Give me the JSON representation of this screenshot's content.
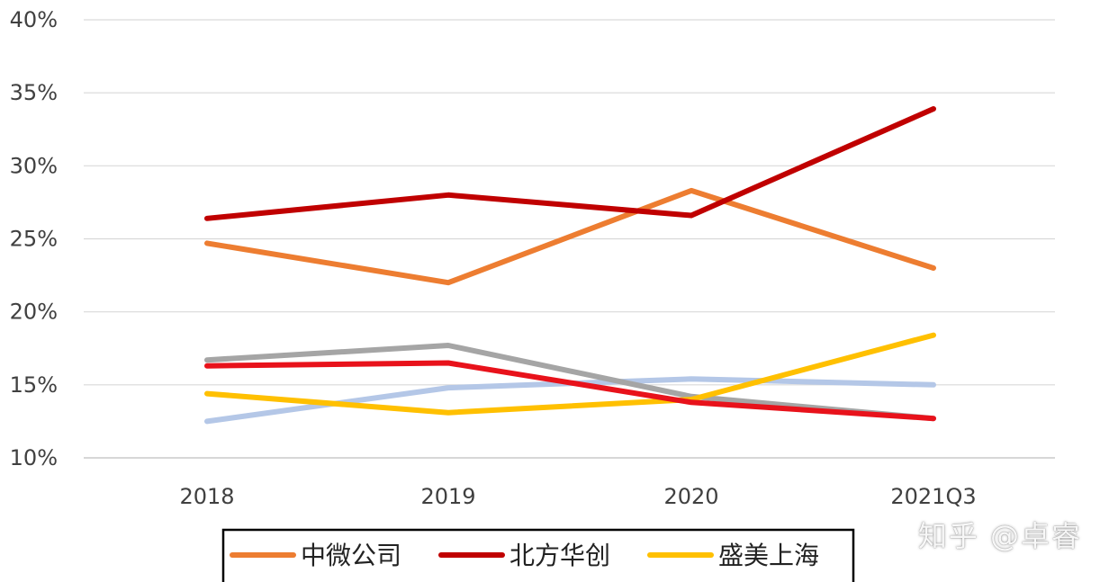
{
  "chart_data": {
    "type": "line",
    "categories": [
      "2018",
      "2019",
      "2020",
      "2021Q3"
    ],
    "y_ticks": [
      "10%",
      "15%",
      "20%",
      "25%",
      "30%",
      "35%",
      "40%"
    ],
    "ylim": [
      10,
      40
    ],
    "grid": true,
    "legend_position": "bottom",
    "series": [
      {
        "name": "中微公司",
        "color": "#ED7D31",
        "values": [
          24.7,
          22.0,
          28.3,
          23.0
        ],
        "legend": true
      },
      {
        "name": "北方华创",
        "color": "#C00000",
        "values": [
          26.4,
          28.0,
          26.6,
          33.9
        ],
        "legend": true
      },
      {
        "name": "盛美上海",
        "color": "#FFC000",
        "values": [
          14.4,
          13.1,
          14.0,
          18.4
        ],
        "legend": true
      },
      {
        "name": "",
        "color": "#A5A5A5",
        "values": [
          16.7,
          17.7,
          14.2,
          12.7
        ],
        "legend": false
      },
      {
        "name": "",
        "color": "#B4C7E7",
        "values": [
          12.5,
          14.8,
          15.4,
          15.0
        ],
        "legend": false
      },
      {
        "name": "",
        "color": "#E8121B",
        "values": [
          16.3,
          16.5,
          13.8,
          12.7
        ],
        "legend": false
      }
    ]
  },
  "watermark": "知乎 @卓睿"
}
